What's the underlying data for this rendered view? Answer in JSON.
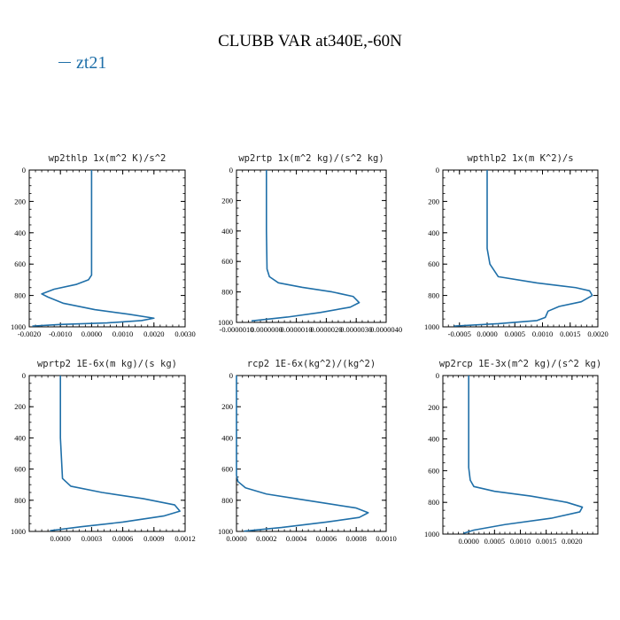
{
  "title": "CLUBB VAR at340E,-60N",
  "legend": [
    {
      "name": "zt21",
      "color": "#1f6fa8"
    }
  ],
  "line_color": "#1f6fa8",
  "chart_data": [
    {
      "type": "line",
      "title": "wp2thlp  1x(m^2 K)/s^2",
      "xlim": [
        -0.002,
        0.003
      ],
      "ylim": [
        1000,
        0
      ],
      "xticks": [
        -0.002,
        -0.001,
        0,
        0.001,
        0.002,
        0.003
      ],
      "xtick_labels": [
        "-0.0020",
        "-0.0010",
        "0.0000",
        "0.0010",
        "0.0020",
        "0.0030"
      ],
      "yticks": [
        0,
        200,
        400,
        600,
        800,
        1000
      ],
      "ytick_labels": [
        "0",
        "200",
        "400",
        "600",
        "800",
        "1000"
      ],
      "series": [
        {
          "name": "zt21",
          "x": [
            0,
            0,
            0,
            0,
            -0.0001,
            -0.0005,
            -0.0012,
            -0.0016,
            -0.0014,
            -0.0009,
            0.0001,
            0.0012,
            0.002,
            0.0016,
            0.0005,
            -0.001,
            -0.0019
          ],
          "y": [
            0,
            300,
            600,
            670,
            700,
            730,
            760,
            790,
            810,
            850,
            890,
            920,
            945,
            960,
            975,
            985,
            995
          ]
        }
      ]
    },
    {
      "type": "line",
      "title": "wp2rtp  1x(m^2 kg)/(s^2 kg)",
      "xlim": [
        -1e-06,
        4e-06
      ],
      "ylim": [
        1000,
        0
      ],
      "xticks": [
        -1e-06,
        0,
        1e-06,
        2e-06,
        3e-06,
        4e-06
      ],
      "xtick_labels": [
        "-0.0000010",
        "0.0000000",
        "0.0000010",
        "0.0000020",
        "0.0000030",
        "0.0000040"
      ],
      "yticks": [
        0,
        200,
        400,
        600,
        800,
        1000
      ],
      "ytick_labels": [
        "0",
        "200",
        "400",
        "600",
        "800",
        "1000"
      ],
      "series": [
        {
          "name": "zt21",
          "x": [
            0,
            0,
            2e-08,
            1e-07,
            4e-07,
            1.2e-06,
            2.2e-06,
            2.9e-06,
            3.1e-06,
            2.8e-06,
            1.8e-06,
            7e-07,
            -5e-07
          ],
          "y": [
            0,
            400,
            650,
            700,
            740,
            770,
            800,
            830,
            870,
            900,
            935,
            965,
            990
          ]
        }
      ]
    },
    {
      "type": "line",
      "title": "wpthlp2  1x(m K^2)/s",
      "xlim": [
        -0.0008,
        0.002
      ],
      "ylim": [
        1000,
        0
      ],
      "xticks": [
        -0.0005,
        0,
        0.0005,
        0.001,
        0.0015,
        0.002
      ],
      "xtick_labels": [
        "-0.0005",
        "0.0000",
        "0.0005",
        "0.0010",
        "0.0015",
        "0.0020"
      ],
      "yticks": [
        0,
        200,
        400,
        600,
        800,
        1000
      ],
      "ytick_labels": [
        "0",
        "200",
        "400",
        "600",
        "800",
        "1000"
      ],
      "series": [
        {
          "name": "zt21",
          "x": [
            0,
            0,
            5e-05,
            0.0002,
            0.0009,
            0.0016,
            0.00185,
            0.0019,
            0.0017,
            0.0013,
            0.0011,
            0.00105,
            0.0009,
            0.0002,
            -0.0006
          ],
          "y": [
            0,
            500,
            600,
            680,
            720,
            750,
            770,
            800,
            840,
            870,
            900,
            940,
            960,
            980,
            995
          ]
        }
      ]
    },
    {
      "type": "line",
      "title": "wprtp2  1E-6x(m kg)/(s kg)",
      "xlim": [
        -0.0003,
        0.0012
      ],
      "ylim": [
        1000,
        0
      ],
      "xticks": [
        0,
        0.0003,
        0.0006,
        0.0009,
        0.0012
      ],
      "xtick_labels": [
        "0.0000",
        "0.0003",
        "0.0006",
        "0.0009",
        "0.0012"
      ],
      "yticks": [
        0,
        200,
        400,
        600,
        800,
        1000
      ],
      "ytick_labels": [
        "0",
        "200",
        "400",
        "600",
        "800",
        "1000"
      ],
      "series": [
        {
          "name": "zt21",
          "x": [
            0,
            0,
            2e-05,
            0.0001,
            0.0004,
            0.0008,
            0.0011,
            0.00115,
            0.001,
            0.0006,
            0.0002,
            -0.0001
          ],
          "y": [
            0,
            400,
            660,
            710,
            750,
            790,
            830,
            870,
            900,
            940,
            970,
            995
          ]
        }
      ]
    },
    {
      "type": "line",
      "title": "rcp2  1E-6x(kg^2)/(kg^2)",
      "xlim": [
        0,
        0.001
      ],
      "ylim": [
        1000,
        0
      ],
      "xticks": [
        0,
        0.0002,
        0.0004,
        0.0006,
        0.0008,
        0.001
      ],
      "xtick_labels": [
        "0.0000",
        "0.0002",
        "0.0004",
        "0.0006",
        "0.0008",
        "0.0010"
      ],
      "yticks": [
        0,
        200,
        400,
        600,
        800,
        1000
      ],
      "ytick_labels": [
        "0",
        "200",
        "400",
        "600",
        "800",
        "1000"
      ],
      "series": [
        {
          "name": "zt21",
          "x": [
            0,
            0,
            1e-05,
            6e-05,
            0.0002,
            0.0004,
            0.0006,
            0.0008,
            0.00088,
            0.00082,
            0.0006,
            0.0003,
            5e-05
          ],
          "y": [
            0,
            640,
            680,
            720,
            760,
            790,
            820,
            850,
            880,
            910,
            940,
            975,
            998
          ]
        }
      ]
    },
    {
      "type": "line",
      "title": "wp2rcp  1E-3x(m^2 kg)/(s^2 kg)",
      "xlim": [
        -0.0005,
        0.0025
      ],
      "ylim": [
        1000,
        0
      ],
      "xticks": [
        0,
        0.0005,
        0.001,
        0.0015,
        0.002
      ],
      "xtick_labels": [
        "0.0000",
        "0.0005",
        "0.0010",
        "0.0015",
        "0.0020"
      ],
      "yticks": [
        0,
        200,
        400,
        600,
        800,
        1000
      ],
      "ytick_labels": [
        "0",
        "200",
        "400",
        "600",
        "800",
        "1000"
      ],
      "series": [
        {
          "name": "zt21",
          "x": [
            0,
            0,
            3e-05,
            0.0001,
            0.0005,
            0.0012,
            0.0019,
            0.0022,
            0.00215,
            0.0016,
            0.0007,
            0.0001,
            -0.0001
          ],
          "y": [
            0,
            580,
            660,
            700,
            730,
            760,
            800,
            830,
            860,
            900,
            940,
            975,
            995
          ]
        }
      ]
    }
  ]
}
